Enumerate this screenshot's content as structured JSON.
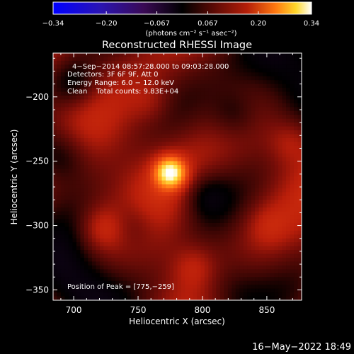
{
  "chart_data": {
    "type": "heatmap",
    "title": "Reconstructed RHESSI Image",
    "xlabel": "Heliocentric X (arcsec)",
    "ylabel": "Heliocentric Y (arcsec)",
    "xlim": [
      684,
      877
    ],
    "ylim": [
      -358,
      -166
    ],
    "x_ticks": [
      {
        "value": 700,
        "label": "700"
      },
      {
        "value": 750,
        "label": "750"
      },
      {
        "value": 800,
        "label": "800"
      },
      {
        "value": 850,
        "label": "850"
      }
    ],
    "y_ticks": [
      {
        "value": -200,
        "label": "−200"
      },
      {
        "value": -250,
        "label": "−250"
      },
      {
        "value": -300,
        "label": "−300"
      },
      {
        "value": -350,
        "label": "−350"
      }
    ],
    "colorbar": {
      "range": [
        -0.34,
        0.34
      ],
      "ticks": [
        {
          "value": -0.34,
          "label": "−0.34"
        },
        {
          "value": -0.2,
          "label": "−0.20"
        },
        {
          "value": -0.067,
          "label": "−0.067"
        },
        {
          "value": 0.067,
          "label": "0.067"
        },
        {
          "value": 0.2,
          "label": "0.20"
        },
        {
          "value": 0.34,
          "label": "0.34"
        }
      ],
      "unit_label": "(photons cm⁻² s⁻¹ asec⁻²)"
    },
    "annotations": [
      "4−Sep−2014 08:57:28.000 to 09:03:28.000",
      "Detectors: 3F 6F 9F, Att 0",
      "Energy Range: 6.0 − 12.0 keV",
      "Clean    Total counts: 9.83E+04"
    ],
    "peak_annotation": "Position of Peak = [775,−259]",
    "peak": {
      "x": 775,
      "y": -259,
      "value": 0.34
    },
    "secondary_sources": [
      {
        "x": 723,
        "y": -302,
        "value": 0.09
      },
      {
        "x": 793,
        "y": -332,
        "value": 0.08
      },
      {
        "x": 868,
        "y": -235,
        "value": 0.08
      },
      {
        "x": 760,
        "y": -205,
        "value": 0.07
      },
      {
        "x": 850,
        "y": -300,
        "value": 0.07
      }
    ],
    "grid": false
  },
  "footer": {
    "timestamp": "16−May−2022 18:49"
  }
}
